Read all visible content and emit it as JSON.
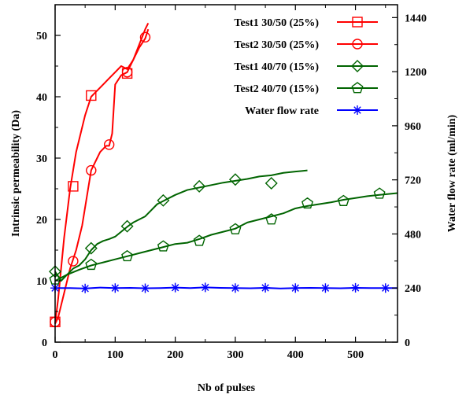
{
  "chart_data": {
    "type": "line",
    "title": "",
    "xlabel": "Nb of pulses",
    "ylabel": "Intrinsic permeability (Da)",
    "y2label": "Water flow rate (ml/min)",
    "xlim": [
      0,
      570
    ],
    "ylim": [
      0,
      55
    ],
    "y2lim": [
      0,
      1497
    ],
    "xticks": [
      0,
      100,
      200,
      300,
      400,
      500
    ],
    "yticks": [
      0,
      10,
      20,
      30,
      40,
      50
    ],
    "y2ticks": [
      0,
      240,
      480,
      720,
      960,
      1200,
      1440
    ],
    "grid": false,
    "legend_position": "top-right",
    "series": [
      {
        "name": "Test1 30/50 (25%)",
        "axis": "left",
        "color": "#ff0000",
        "marker": "square",
        "x": [
          0,
          5,
          10,
          15,
          20,
          25,
          30,
          35,
          40,
          45,
          50,
          55,
          60,
          65,
          70,
          80,
          90,
          100,
          110,
          120,
          130,
          140,
          150,
          155
        ],
        "y": [
          3,
          7,
          12,
          17,
          21,
          25,
          28,
          31,
          33,
          35,
          37,
          38.5,
          40,
          40.5,
          41,
          42,
          43,
          44,
          45,
          44.5,
          46,
          48.5,
          51,
          52
        ],
        "marker_x": [
          0,
          30,
          60,
          120
        ],
        "marker_y": [
          3.3,
          25.4,
          40.2,
          43.8
        ]
      },
      {
        "name": "Test2 30/50 (25%)",
        "axis": "left",
        "color": "#ff0000",
        "marker": "circle",
        "x": [
          0,
          5,
          10,
          15,
          20,
          25,
          30,
          35,
          40,
          45,
          50,
          55,
          60,
          65,
          70,
          75,
          80,
          85,
          90,
          95,
          100,
          110,
          120,
          130,
          140,
          150,
          155
        ],
        "y": [
          3,
          4,
          6,
          8,
          10,
          12,
          13.5,
          15,
          17,
          19,
          22,
          25,
          28,
          29,
          30,
          31,
          31.5,
          32,
          32,
          34,
          42,
          43.5,
          44,
          46,
          48,
          49.5,
          51
        ],
        "marker_x": [
          0,
          30,
          60,
          90,
          120,
          150
        ],
        "marker_y": [
          3.3,
          13.2,
          28,
          32.2,
          44,
          49.7
        ]
      },
      {
        "name": "Test1 40/70 (15%)",
        "axis": "left",
        "color": "#006400",
        "marker": "diamond",
        "x": [
          0,
          10,
          20,
          30,
          40,
          50,
          60,
          70,
          80,
          90,
          100,
          110,
          120,
          130,
          140,
          150,
          160,
          170,
          180,
          190,
          200,
          220,
          240,
          260,
          280,
          300,
          320,
          340,
          360,
          380,
          400,
          420
        ],
        "y": [
          11.5,
          10,
          11,
          12,
          12.5,
          13.5,
          15,
          16,
          16.5,
          16.8,
          17.2,
          18,
          18.8,
          19.5,
          20,
          20.5,
          21.5,
          22.5,
          23,
          23.5,
          24,
          24.8,
          25.2,
          25.6,
          26,
          26.3,
          26.6,
          27,
          27.2,
          27.6,
          27.8,
          28
        ],
        "marker_x": [
          0,
          60,
          120,
          180,
          240,
          300,
          360
        ],
        "marker_y": [
          11.5,
          15.3,
          18.9,
          23.1,
          25.4,
          26.5,
          25.9
        ]
      },
      {
        "name": "Test2 40/70 (15%)",
        "axis": "left",
        "color": "#006400",
        "marker": "pentagon",
        "x": [
          0,
          10,
          20,
          40,
          60,
          80,
          100,
          120,
          140,
          160,
          180,
          200,
          220,
          240,
          260,
          280,
          300,
          320,
          340,
          360,
          380,
          400,
          420,
          440,
          460,
          480,
          500,
          520,
          540,
          560,
          570
        ],
        "y": [
          10,
          10.5,
          11,
          11.8,
          12.5,
          13,
          13.5,
          14,
          14.5,
          15,
          15.5,
          16,
          16.2,
          16.8,
          17.5,
          18,
          18.5,
          19.5,
          20,
          20.5,
          21,
          21.8,
          22.2,
          22.5,
          22.8,
          23.2,
          23.5,
          23.8,
          24,
          24.2,
          24.3
        ],
        "marker_x": [
          0,
          60,
          120,
          180,
          240,
          300,
          360,
          420,
          480,
          540
        ],
        "marker_y": [
          10.2,
          12.6,
          14,
          15.6,
          16.5,
          18.4,
          20,
          22.6,
          23,
          24.2
        ]
      },
      {
        "name": "Water flow rate",
        "axis": "right",
        "color": "#0000ff",
        "marker": "star",
        "x": [
          0,
          25,
          50,
          75,
          100,
          125,
          150,
          175,
          200,
          225,
          250,
          275,
          300,
          325,
          350,
          375,
          400,
          425,
          450,
          475,
          500,
          525,
          550,
          570
        ],
        "y": [
          240,
          240,
          238,
          242,
          240,
          241,
          239,
          240,
          242,
          240,
          243,
          241,
          240,
          239,
          241,
          238,
          240,
          241,
          240,
          239,
          241,
          240,
          240,
          240
        ],
        "marker_x": [
          0,
          50,
          100,
          150,
          200,
          250,
          300,
          350,
          400,
          450,
          500,
          550
        ],
        "marker_y": [
          240,
          238,
          240,
          239,
          242,
          243,
          240,
          241,
          240,
          240,
          241,
          240
        ]
      }
    ]
  }
}
